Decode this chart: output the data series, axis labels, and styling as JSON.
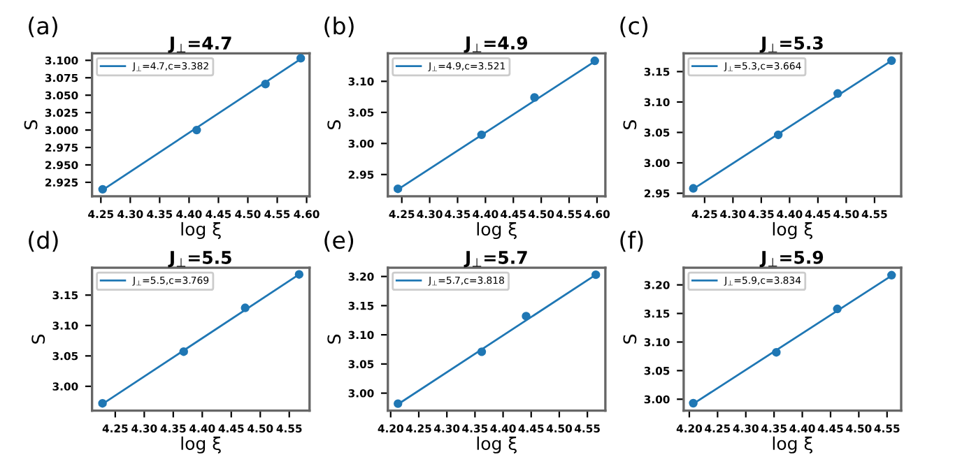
{
  "chart_data": [
    {
      "type": "scatter",
      "title": "J$_{⊥}$=4.7",
      "xlabel": "log ξ",
      "ylabel": "S",
      "annotations": [
        "(a)"
      ],
      "legend": "top left",
      "xlim": [
        4.235,
        4.605
      ],
      "ylim": [
        2.905,
        3.11
      ],
      "xticks": [
        {
          "value": 4.25,
          "label": "4.25"
        },
        {
          "value": 4.3,
          "label": "4.30"
        },
        {
          "value": 4.35,
          "label": "4.35"
        },
        {
          "value": 4.4,
          "label": "4.40"
        },
        {
          "value": 4.45,
          "label": "4.45"
        },
        {
          "value": 4.5,
          "label": "4.50"
        },
        {
          "value": 4.55,
          "label": "4.55"
        },
        {
          "value": 4.6,
          "label": "4.60"
        }
      ],
      "yticks": [
        {
          "value": 2.925,
          "label": "2.925"
        },
        {
          "value": 2.95,
          "label": "2.950"
        },
        {
          "value": 2.975,
          "label": "2.975"
        },
        {
          "value": 3.0,
          "label": "3.000"
        },
        {
          "value": 3.025,
          "label": "3.025"
        },
        {
          "value": 3.05,
          "label": "3.050"
        },
        {
          "value": 3.075,
          "label": "3.075"
        },
        {
          "value": 3.1,
          "label": "3.100"
        }
      ],
      "series": [
        {
          "color": "#1f77b4",
          "marker": "circle",
          "x": [
            4.253,
            4.413,
            4.53,
            4.59
          ],
          "values": [
            2.915,
            3.0,
            3.066,
            3.103
          ]
        },
        {
          "type": "line",
          "name": "J$_{⊥}$=4.7,c=3.382",
          "color": "#1f77b4",
          "marker": "none",
          "line_style": "solid",
          "x": [
            4.253,
            4.59
          ],
          "values": [
            2.914,
            3.102
          ]
        }
      ]
    },
    {
      "type": "scatter",
      "title": "J$_{⊥}$=4.9",
      "xlabel": "log ξ",
      "ylabel": "S",
      "annotations": [
        "(b)"
      ],
      "legend": "top left",
      "xlim": [
        4.225,
        4.615
      ],
      "ylim": [
        2.915,
        3.145
      ],
      "xticks": [
        {
          "value": 4.25,
          "label": "4.25"
        },
        {
          "value": 4.3,
          "label": "4.30"
        },
        {
          "value": 4.35,
          "label": "4.35"
        },
        {
          "value": 4.4,
          "label": "4.40"
        },
        {
          "value": 4.45,
          "label": "4.45"
        },
        {
          "value": 4.5,
          "label": "4.50"
        },
        {
          "value": 4.55,
          "label": "4.55"
        },
        {
          "value": 4.6,
          "label": "4.60"
        }
      ],
      "yticks": [
        {
          "value": 2.95,
          "label": "2.95"
        },
        {
          "value": 3.0,
          "label": "3.00"
        },
        {
          "value": 3.05,
          "label": "3.05"
        },
        {
          "value": 3.1,
          "label": "3.10"
        }
      ],
      "series": [
        {
          "color": "#1f77b4",
          "marker": "circle",
          "x": [
            4.243,
            4.393,
            4.488,
            4.596
          ],
          "values": [
            2.927,
            3.014,
            3.074,
            3.133
          ]
        },
        {
          "type": "line",
          "name": "J$_{⊥}$=4.9,c=3.521",
          "color": "#1f77b4",
          "marker": "none",
          "line_style": "solid",
          "x": [
            4.243,
            4.596
          ],
          "values": [
            2.926,
            3.132
          ]
        }
      ]
    },
    {
      "type": "scatter",
      "title": "J$_{⊥}$=5.3",
      "xlabel": "log ξ",
      "ylabel": "S",
      "annotations": [
        "(c)"
      ],
      "legend": "top left",
      "xlim": [
        4.213,
        4.597
      ],
      "ylim": [
        2.945,
        3.18
      ],
      "xticks": [
        {
          "value": 4.25,
          "label": "4.25"
        },
        {
          "value": 4.3,
          "label": "4.30"
        },
        {
          "value": 4.35,
          "label": "4.35"
        },
        {
          "value": 4.4,
          "label": "4.40"
        },
        {
          "value": 4.45,
          "label": "4.45"
        },
        {
          "value": 4.5,
          "label": "4.50"
        },
        {
          "value": 4.55,
          "label": "4.55"
        }
      ],
      "yticks": [
        {
          "value": 2.95,
          "label": "2.95"
        },
        {
          "value": 3.0,
          "label": "3.00"
        },
        {
          "value": 3.05,
          "label": "3.05"
        },
        {
          "value": 3.1,
          "label": "3.10"
        },
        {
          "value": 3.15,
          "label": "3.15"
        }
      ],
      "series": [
        {
          "color": "#1f77b4",
          "marker": "circle",
          "x": [
            4.23,
            4.38,
            4.485,
            4.58
          ],
          "values": [
            2.958,
            3.046,
            3.114,
            3.168
          ]
        },
        {
          "type": "line",
          "name": "J$_{⊥}$=5.3,c=3.664",
          "color": "#1f77b4",
          "marker": "none",
          "line_style": "solid",
          "x": [
            4.23,
            4.58
          ],
          "values": [
            2.957,
            3.168
          ]
        }
      ]
    },
    {
      "type": "scatter",
      "title": "J$_{⊥}$=5.5",
      "xlabel": "log ξ",
      "ylabel": "S",
      "annotations": [
        "(d)"
      ],
      "legend": "top left",
      "xlim": [
        4.21,
        4.585
      ],
      "ylim": [
        2.96,
        3.195
      ],
      "xticks": [
        {
          "value": 4.25,
          "label": "4.25"
        },
        {
          "value": 4.3,
          "label": "4.30"
        },
        {
          "value": 4.35,
          "label": "4.35"
        },
        {
          "value": 4.4,
          "label": "4.40"
        },
        {
          "value": 4.45,
          "label": "4.45"
        },
        {
          "value": 4.5,
          "label": "4.50"
        },
        {
          "value": 4.55,
          "label": "4.55"
        }
      ],
      "yticks": [
        {
          "value": 3.0,
          "label": "3.00"
        },
        {
          "value": 3.05,
          "label": "3.05"
        },
        {
          "value": 3.1,
          "label": "3.10"
        },
        {
          "value": 3.15,
          "label": "3.15"
        }
      ],
      "series": [
        {
          "color": "#1f77b4",
          "marker": "circle",
          "x": [
            4.228,
            4.368,
            4.474,
            4.567
          ],
          "values": [
            2.972,
            3.057,
            3.129,
            3.184
          ]
        },
        {
          "type": "line",
          "name": "J$_{⊥}$=5.5,c=3.769",
          "color": "#1f77b4",
          "marker": "none",
          "line_style": "solid",
          "x": [
            4.228,
            4.567
          ],
          "values": [
            2.971,
            3.184
          ]
        }
      ]
    },
    {
      "type": "scatter",
      "title": "J$_{⊥}$=5.7",
      "xlabel": "log ξ",
      "ylabel": "S",
      "annotations": [
        "(e)"
      ],
      "legend": "top left",
      "xlim": [
        4.195,
        4.582
      ],
      "ylim": [
        2.97,
        3.215
      ],
      "xticks": [
        {
          "value": 4.2,
          "label": "4.20"
        },
        {
          "value": 4.25,
          "label": "4.25"
        },
        {
          "value": 4.3,
          "label": "4.30"
        },
        {
          "value": 4.35,
          "label": "4.35"
        },
        {
          "value": 4.4,
          "label": "4.40"
        },
        {
          "value": 4.45,
          "label": "4.45"
        },
        {
          "value": 4.5,
          "label": "4.50"
        },
        {
          "value": 4.55,
          "label": "4.55"
        }
      ],
      "yticks": [
        {
          "value": 3.0,
          "label": "3.00"
        },
        {
          "value": 3.05,
          "label": "3.05"
        },
        {
          "value": 3.1,
          "label": "3.10"
        },
        {
          "value": 3.15,
          "label": "3.15"
        },
        {
          "value": 3.2,
          "label": "3.20"
        }
      ],
      "series": [
        {
          "color": "#1f77b4",
          "marker": "circle",
          "x": [
            4.213,
            4.362,
            4.441,
            4.565
          ],
          "values": [
            2.982,
            3.071,
            3.132,
            3.203
          ]
        },
        {
          "type": "line",
          "name": "J$_{⊥}$=5.7,c=3.818",
          "color": "#1f77b4",
          "marker": "none",
          "line_style": "solid",
          "x": [
            4.213,
            4.565
          ],
          "values": [
            2.981,
            3.203
          ]
        }
      ]
    },
    {
      "type": "scatter",
      "title": "J$_{⊥}$=5.9",
      "xlabel": "log ξ",
      "ylabel": "S",
      "annotations": [
        "(f)"
      ],
      "legend": "top left",
      "xlim": [
        4.19,
        4.575
      ],
      "ylim": [
        2.98,
        3.23
      ],
      "xticks": [
        {
          "value": 4.2,
          "label": "4.20"
        },
        {
          "value": 4.25,
          "label": "4.25"
        },
        {
          "value": 4.3,
          "label": "4.30"
        },
        {
          "value": 4.35,
          "label": "4.35"
        },
        {
          "value": 4.4,
          "label": "4.40"
        },
        {
          "value": 4.45,
          "label": "4.45"
        },
        {
          "value": 4.5,
          "label": "4.50"
        },
        {
          "value": 4.55,
          "label": "4.55"
        }
      ],
      "yticks": [
        {
          "value": 3.0,
          "label": "3.00"
        },
        {
          "value": 3.05,
          "label": "3.05"
        },
        {
          "value": 3.1,
          "label": "3.10"
        },
        {
          "value": 3.15,
          "label": "3.15"
        },
        {
          "value": 3.2,
          "label": "3.20"
        }
      ],
      "series": [
        {
          "color": "#1f77b4",
          "marker": "circle",
          "x": [
            4.207,
            4.354,
            4.462,
            4.558
          ],
          "values": [
            2.993,
            3.082,
            3.158,
            3.217
          ]
        },
        {
          "type": "line",
          "name": "J$_{⊥}$=5.9,c=3.834",
          "color": "#1f77b4",
          "marker": "none",
          "line_style": "solid",
          "x": [
            4.207,
            4.558
          ],
          "values": [
            2.992,
            3.216
          ]
        }
      ]
    }
  ]
}
